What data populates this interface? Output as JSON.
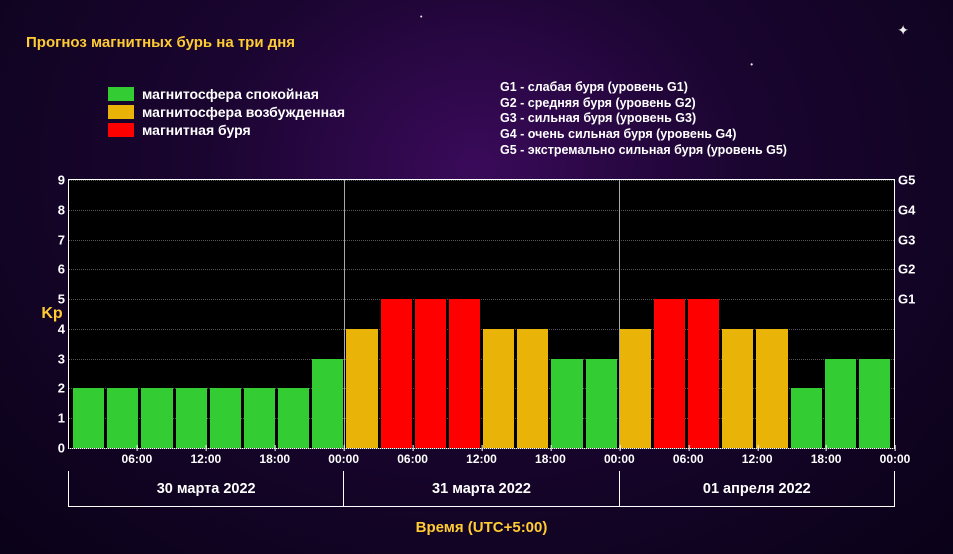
{
  "title": "Прогноз магнитных бурь на три дня",
  "colors": {
    "green": "#33cc33",
    "yellow": "#eab308",
    "red": "#ff0000",
    "accent": "#ffcc33",
    "text": "#ffffff",
    "plot_bg": "#000000",
    "grid": "#555555",
    "border": "#ffffff"
  },
  "legend_left": [
    {
      "color": "#33cc33",
      "label": "магнитосфера спокойная"
    },
    {
      "color": "#eab308",
      "label": "магнитосфера возбужденная"
    },
    {
      "color": "#ff0000",
      "label": "магнитная буря"
    }
  ],
  "legend_right": [
    "G1 - слабая буря (уровень G1)",
    "G2 - средняя буря (уровень G2)",
    "G3 - сильная буря (уровень G3)",
    "G4 - очень сильная буря (уровень G4)",
    "G5 - экстремально сильная буря (уровень G5)"
  ],
  "chart": {
    "type": "bar",
    "ylabel_left": "Kp",
    "xaxis_title": "Время (UTC+5:00)",
    "ylim": [
      0,
      9
    ],
    "yticks_left": [
      0,
      1,
      2,
      3,
      4,
      5,
      6,
      7,
      8,
      9
    ],
    "yticks_right": [
      {
        "v": 5,
        "label": "G1"
      },
      {
        "v": 6,
        "label": "G2"
      },
      {
        "v": 7,
        "label": "G3"
      },
      {
        "v": 8,
        "label": "G4"
      },
      {
        "v": 9,
        "label": "G5"
      }
    ],
    "day_boundaries_at_bar_index": [
      8,
      16
    ],
    "xtick_at_bar_index": [
      {
        "i": 1,
        "label": "06:00"
      },
      {
        "i": 3,
        "label": "12:00"
      },
      {
        "i": 5,
        "label": "18:00"
      },
      {
        "i": 7,
        "label": "00:00"
      },
      {
        "i": 9,
        "label": "06:00"
      },
      {
        "i": 11,
        "label": "12:00"
      },
      {
        "i": 13,
        "label": "18:00"
      },
      {
        "i": 15,
        "label": "00:00"
      },
      {
        "i": 17,
        "label": "06:00"
      },
      {
        "i": 19,
        "label": "12:00"
      },
      {
        "i": 21,
        "label": "18:00"
      },
      {
        "i": 23,
        "label": "00:00"
      }
    ],
    "dates": [
      "30 марта 2022",
      "31 марта 2022",
      "01 апреля 2022"
    ],
    "bars": [
      {
        "v": 2,
        "c": "green"
      },
      {
        "v": 2,
        "c": "green"
      },
      {
        "v": 2,
        "c": "green"
      },
      {
        "v": 2,
        "c": "green"
      },
      {
        "v": 2,
        "c": "green"
      },
      {
        "v": 2,
        "c": "green"
      },
      {
        "v": 2,
        "c": "green"
      },
      {
        "v": 3,
        "c": "green"
      },
      {
        "v": 4,
        "c": "yellow"
      },
      {
        "v": 5,
        "c": "red"
      },
      {
        "v": 5,
        "c": "red"
      },
      {
        "v": 5,
        "c": "red"
      },
      {
        "v": 4,
        "c": "yellow"
      },
      {
        "v": 4,
        "c": "yellow"
      },
      {
        "v": 3,
        "c": "green"
      },
      {
        "v": 3,
        "c": "green"
      },
      {
        "v": 4,
        "c": "yellow"
      },
      {
        "v": 5,
        "c": "red"
      },
      {
        "v": 5,
        "c": "red"
      },
      {
        "v": 4,
        "c": "yellow"
      },
      {
        "v": 4,
        "c": "yellow"
      },
      {
        "v": 2,
        "c": "green"
      },
      {
        "v": 3,
        "c": "green"
      },
      {
        "v": 3,
        "c": "green"
      }
    ],
    "bar_width_ratio": 0.85,
    "title_fontsize_pt": 15,
    "label_fontsize_pt": 14,
    "tick_fontsize_pt": 13
  }
}
